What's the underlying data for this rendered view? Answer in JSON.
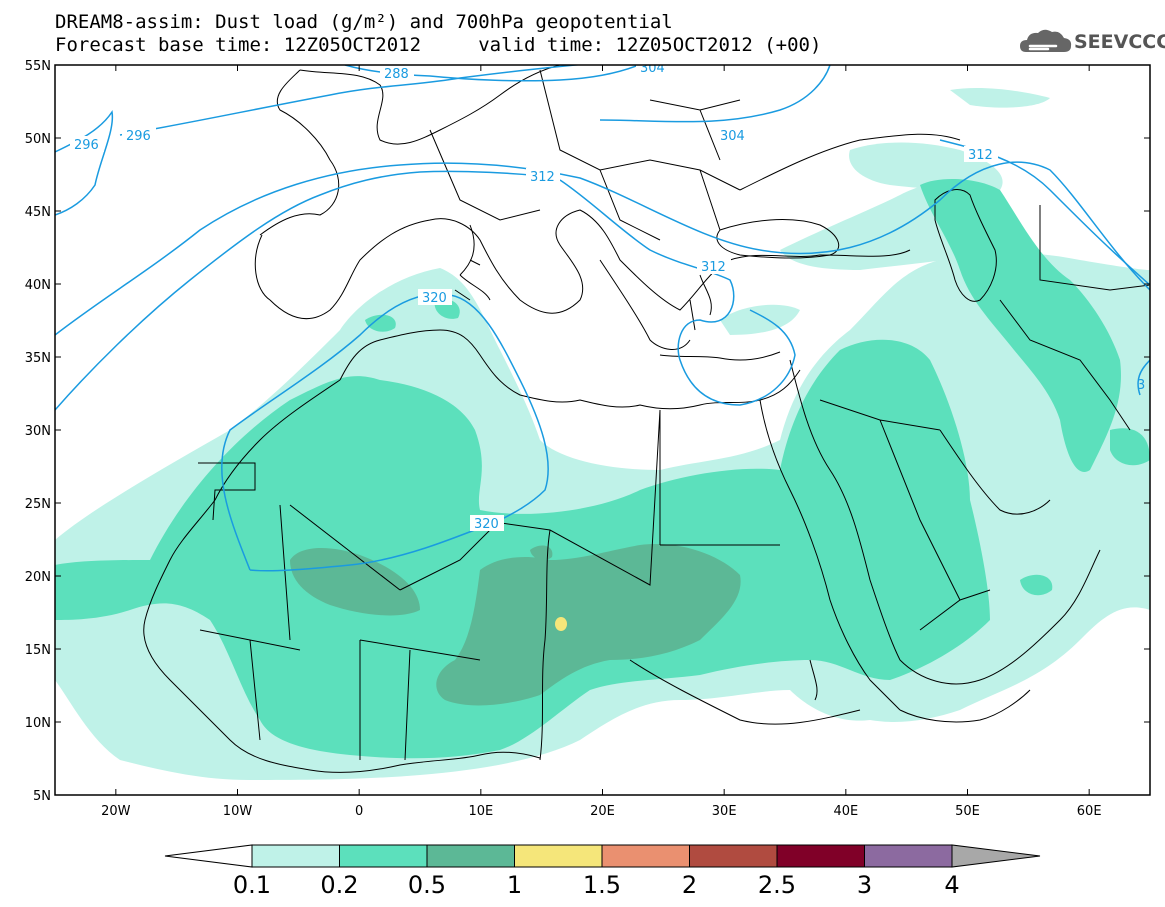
{
  "header": {
    "line1": "DREAM8-assim: Dust load (g/m²) and 700hPa geopotential",
    "line2": "Forecast base time: 12Z05OCT2012     valid time: 12Z05OCT2012 (+00)"
  },
  "logo": {
    "text": "SEEVCCC",
    "icon": "cloud-icon"
  },
  "map": {
    "lat_labels": [
      "55N",
      "50N",
      "45N",
      "40N",
      "35N",
      "30N",
      "25N",
      "20N",
      "15N",
      "10N",
      "5N"
    ],
    "lon_labels": [
      "20W",
      "10W",
      "0",
      "10E",
      "20E",
      "30E",
      "40E",
      "50E",
      "60E"
    ],
    "lat_range": [
      5,
      55
    ],
    "lon_range": [
      -25,
      65
    ],
    "contour_labels": [
      "288",
      "296",
      "296",
      "304",
      "312",
      "312",
      "312",
      "320",
      "320",
      "304",
      "3"
    ],
    "colors": {
      "land_border": "#000000",
      "contour": "#1a9be0",
      "dust_0_1": "#bff2e8",
      "dust_0_2": "#5ce0bc",
      "dust_0_5": "#5cb896",
      "dust_1": "#f5e67a"
    }
  },
  "colorbar": {
    "labels": [
      "0.1",
      "0.2",
      "0.5",
      "1",
      "1.5",
      "2",
      "2.5",
      "3",
      "4"
    ],
    "colors": [
      "#ffffff",
      "#bff2e8",
      "#5ce0bc",
      "#5cb896",
      "#f5e67a",
      "#ea9070",
      "#b04b40",
      "#800028",
      "#8c6aa0",
      "#a8a8a8"
    ]
  }
}
